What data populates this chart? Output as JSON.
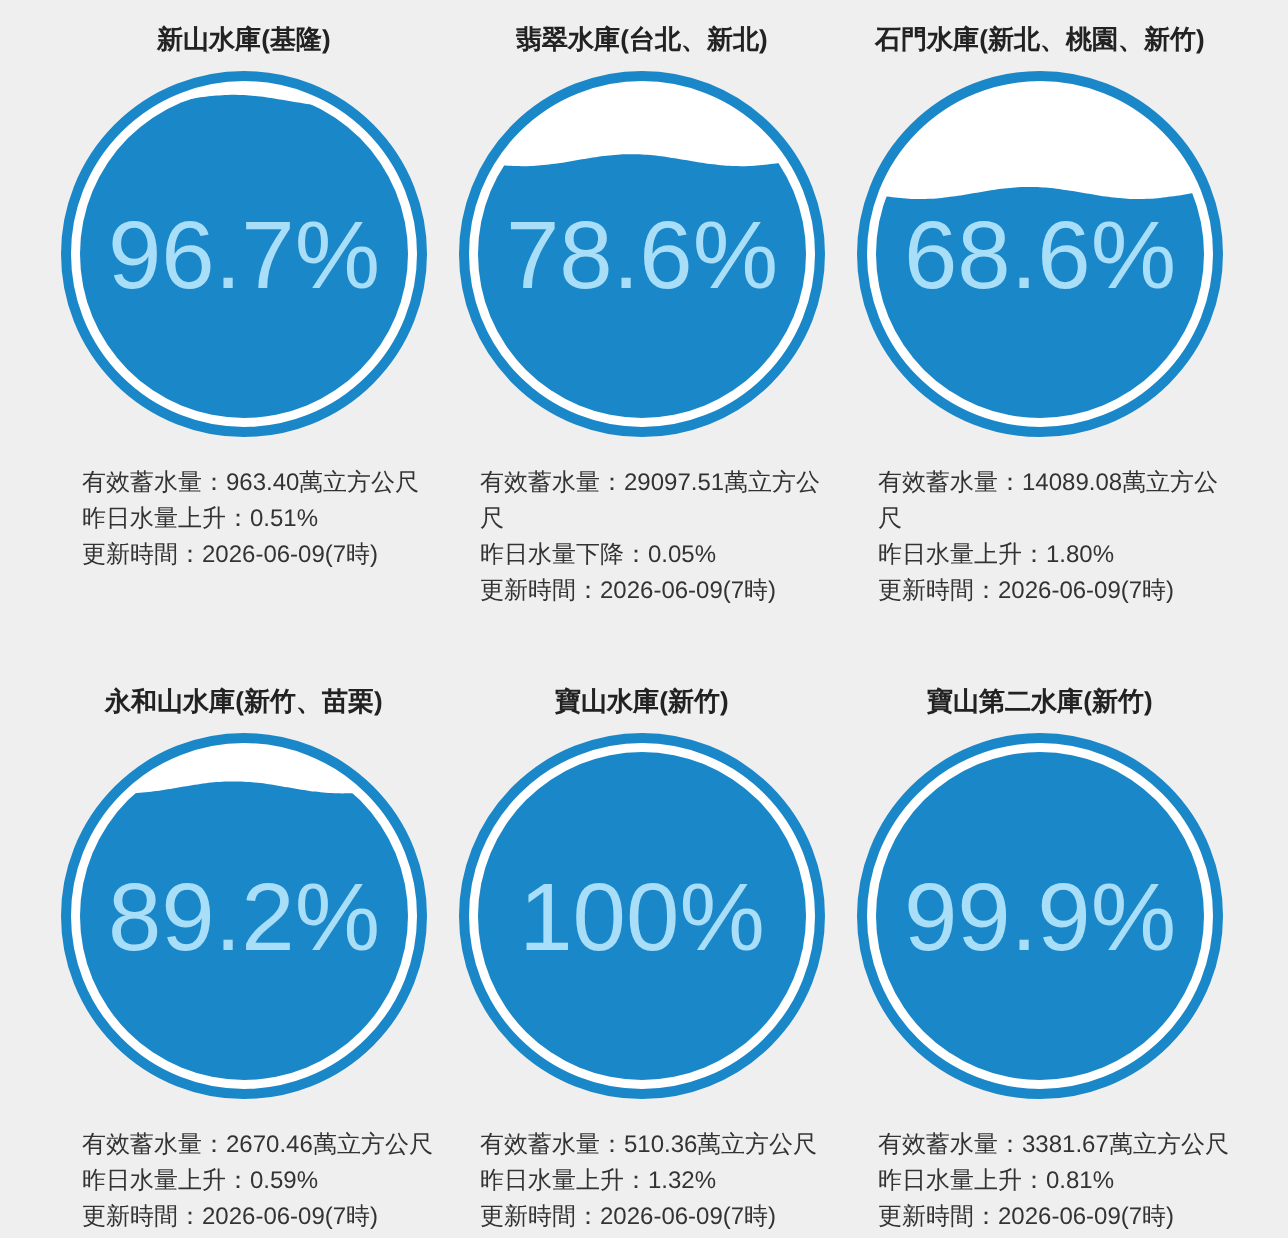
{
  "chart_data": [
    {
      "type": "other",
      "title": "新山水庫(基隆)",
      "values": [
        96.7
      ],
      "value_labels": [
        "96.7%"
      ],
      "color": "#1a87c9",
      "annotations": [
        "有效蓄水量：963.40萬立方公尺",
        "昨日水量上升：0.51%",
        "更新時間：2026-06-09(7時)"
      ]
    },
    {
      "type": "other",
      "title": "翡翠水庫(台北、新北)",
      "values": [
        78.6
      ],
      "value_labels": [
        "78.6%"
      ],
      "color": "#1a87c9",
      "annotations": [
        "有效蓄水量：29097.51萬立方公尺",
        "昨日水量下降：0.05%",
        "更新時間：2026-06-09(7時)"
      ]
    },
    {
      "type": "other",
      "title": "石門水庫(新北、桃園、新竹)",
      "values": [
        68.6
      ],
      "value_labels": [
        "68.6%"
      ],
      "color": "#1a87c9",
      "annotations": [
        "有效蓄水量：14089.08萬立方公尺",
        "昨日水量上升：1.80%",
        "更新時間：2026-06-09(7時)"
      ]
    },
    {
      "type": "other",
      "title": "永和山水庫(新竹、苗栗)",
      "values": [
        89.2
      ],
      "value_labels": [
        "89.2%"
      ],
      "color": "#1a87c9",
      "annotations": [
        "有效蓄水量：2670.46萬立方公尺",
        "昨日水量上升：0.59%",
        "更新時間：2026-06-09(7時)"
      ]
    },
    {
      "type": "other",
      "title": "寶山水庫(新竹)",
      "values": [
        100
      ],
      "value_labels": [
        "100%"
      ],
      "color": "#1a87c9",
      "annotations": [
        "有效蓄水量：510.36萬立方公尺",
        "昨日水量上升：1.32%",
        "更新時間：2026-06-09(7時)"
      ]
    },
    {
      "type": "other",
      "title": "寶山第二水庫(新竹)",
      "values": [
        99.9
      ],
      "value_labels": [
        "99.9%"
      ],
      "color": "#1a87c9",
      "annotations": [
        "有效蓄水量：3381.67萬立方公尺",
        "昨日水量上升：0.81%",
        "更新時間：2026-06-09(7時)"
      ]
    }
  ]
}
